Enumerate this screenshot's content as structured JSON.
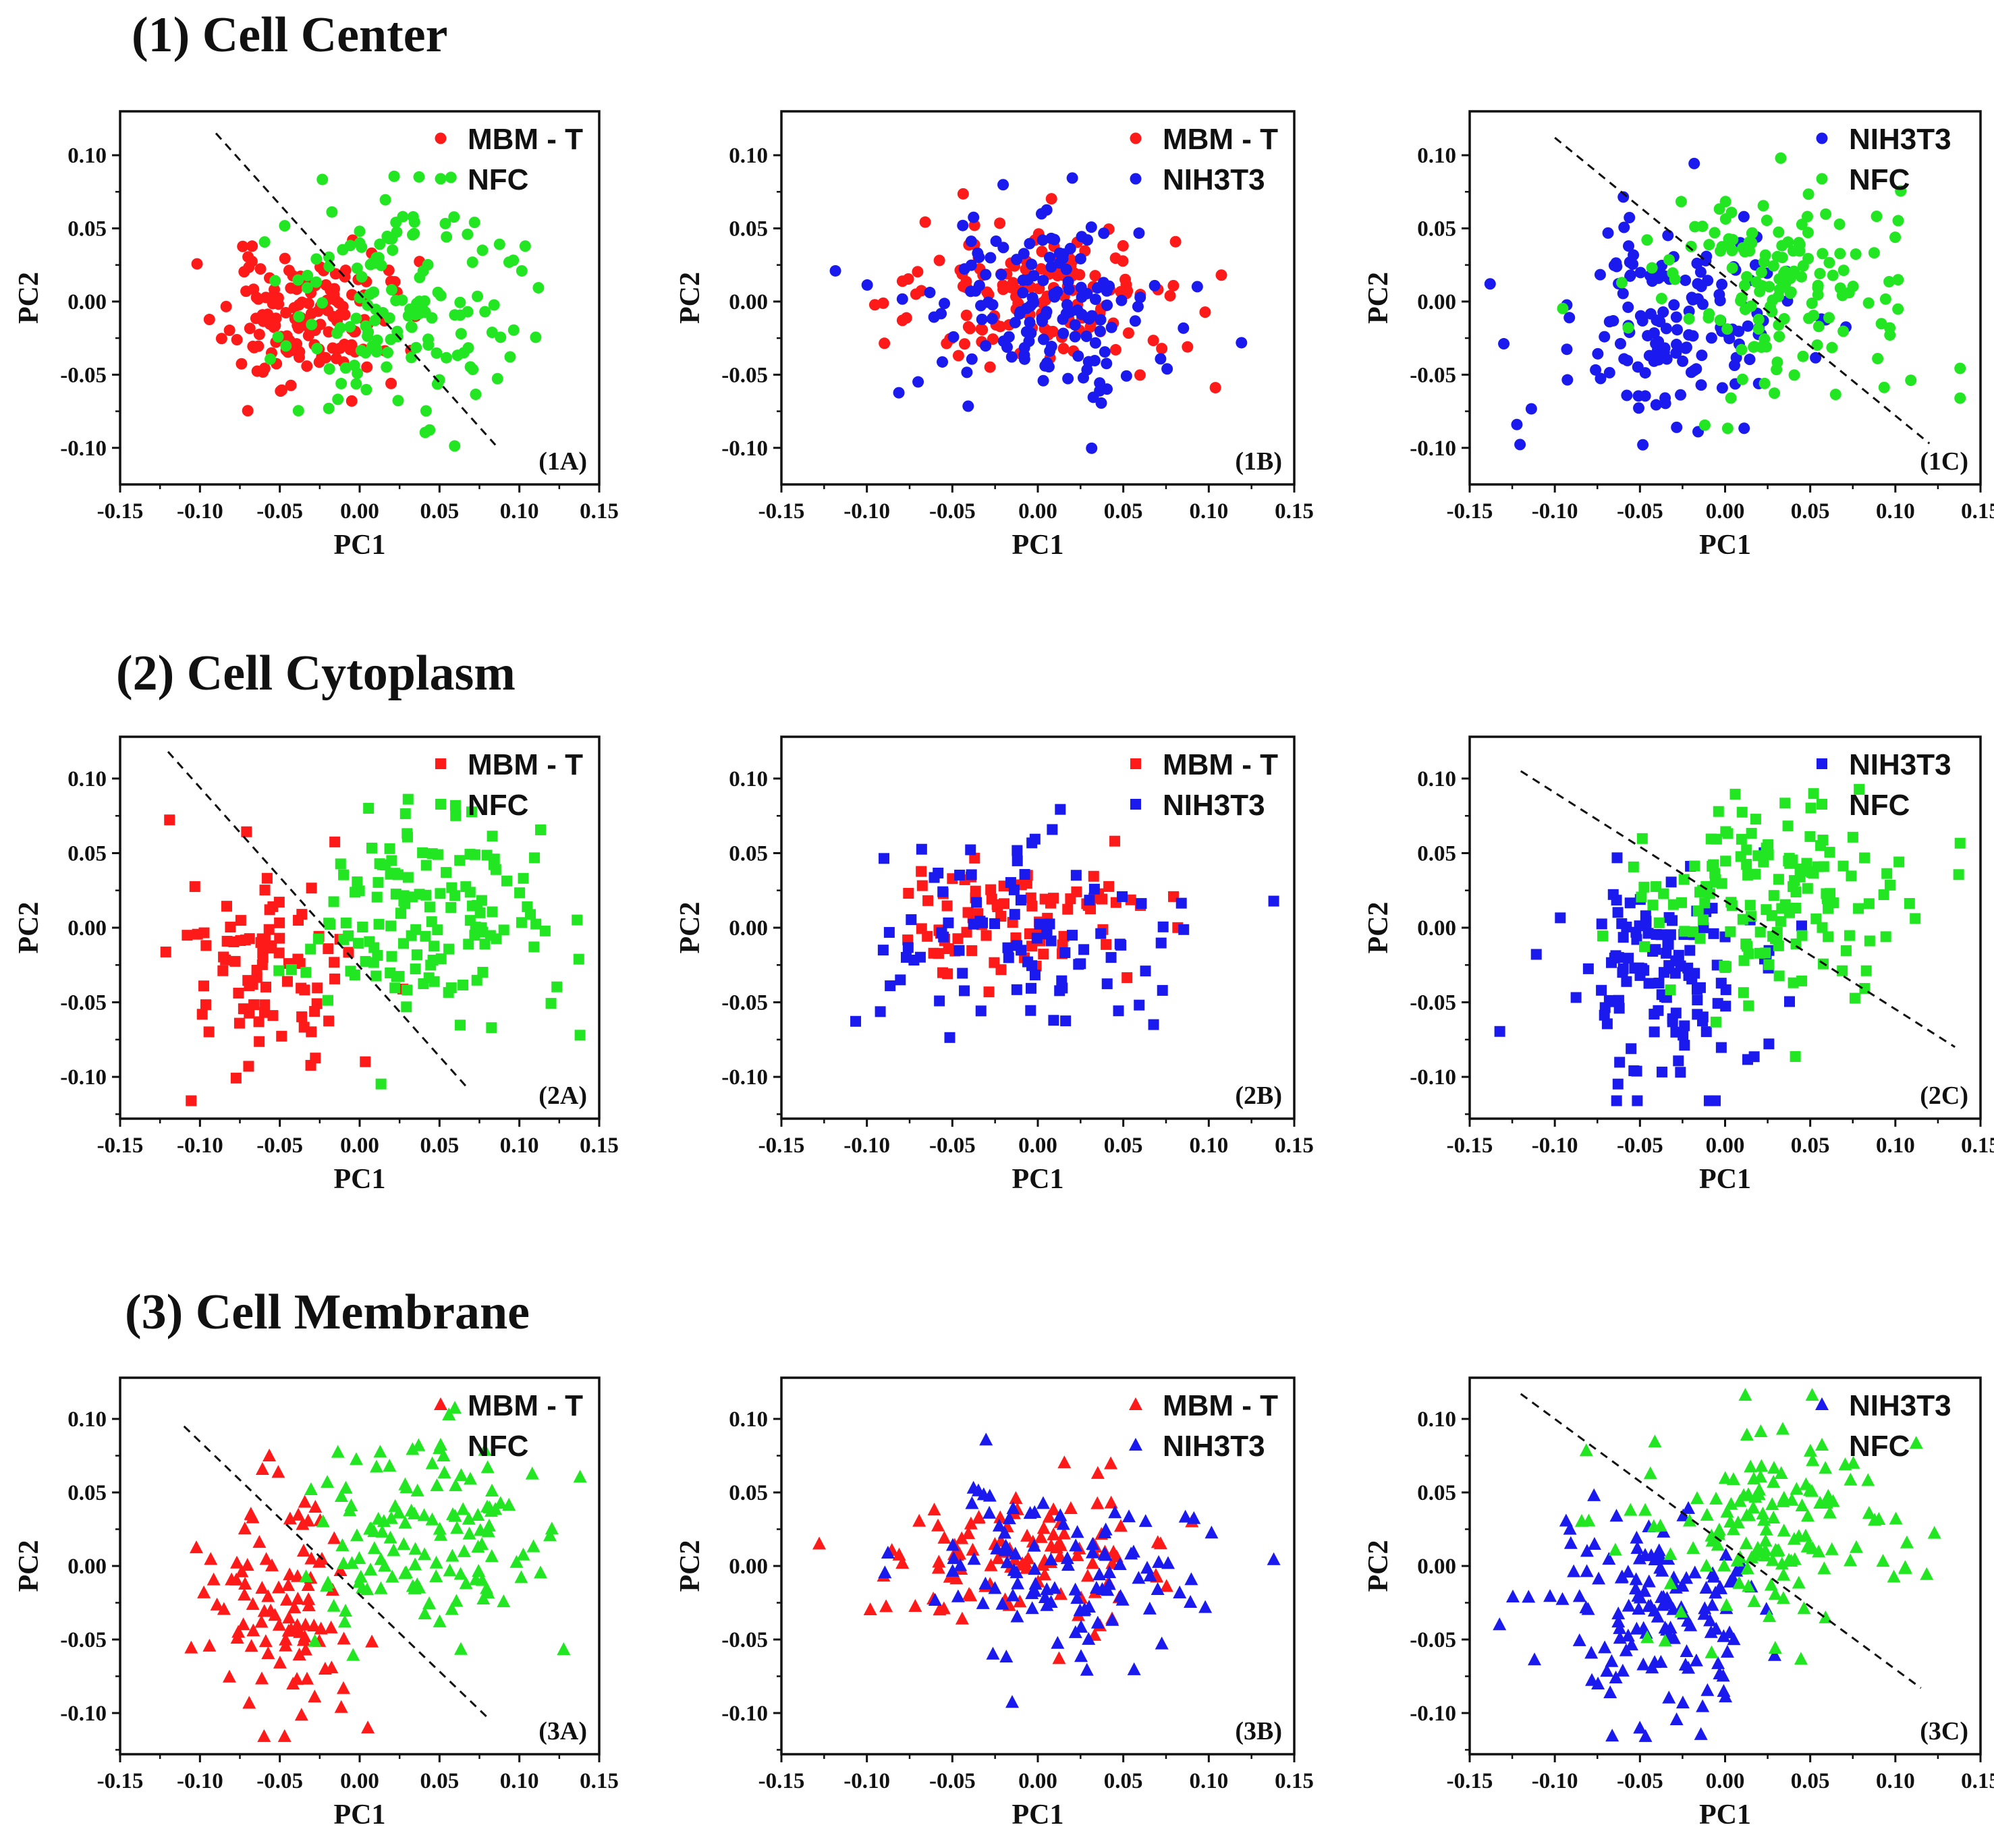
{
  "figure": {
    "sections": [
      {
        "title": "(1) Cell Center"
      },
      {
        "title": "(2) Cell Cytoplasm"
      },
      {
        "title": "(3) Cell Membrane"
      }
    ],
    "colors": {
      "MBM - T": "#ff1a1a",
      "NFC": "#22e622",
      "NIH3T3": "#1a1aee"
    }
  },
  "chart_data": [
    {
      "id": "1A",
      "type": "scatter",
      "marker": "circle",
      "tag": "(1A)",
      "xlabel": "PC1",
      "ylabel": "PC2",
      "xlim": [
        -0.15,
        0.15
      ],
      "ylim": [
        -0.125,
        0.13
      ],
      "xticks": [
        "-0.15",
        "-0.10",
        "-0.05",
        "0.00",
        "0.05",
        "0.10",
        "0.15"
      ],
      "yticks": [
        "0.10",
        "0.05",
        "0.00",
        "-0.05",
        "-0.10"
      ],
      "legend": [
        "MBM - T",
        "NFC"
      ],
      "separator": [
        [
          -0.09,
          0.115
        ],
        [
          0.085,
          -0.098
        ]
      ],
      "series": [
        {
          "name": "MBM - T",
          "center": [
            -0.035,
            -0.012
          ],
          "spread": [
            0.025,
            0.022
          ],
          "count": 150,
          "seed": 11
        },
        {
          "name": "NFC",
          "center": [
            0.025,
            0.0
          ],
          "spread": [
            0.037,
            0.036
          ],
          "count": 150,
          "seed": 12
        }
      ]
    },
    {
      "id": "1B",
      "type": "scatter",
      "marker": "circle",
      "tag": "(1B)",
      "xlabel": "PC1",
      "ylabel": "PC2",
      "xlim": [
        -0.15,
        0.15
      ],
      "ylim": [
        -0.125,
        0.13
      ],
      "xticks": [
        "-0.15",
        "-0.10",
        "-0.05",
        "0.00",
        "0.05",
        "0.10",
        "0.15"
      ],
      "yticks": [
        "0.10",
        "0.05",
        "0.00",
        "-0.05",
        "-0.10"
      ],
      "legend": [
        "MBM - T",
        "NIH3T3"
      ],
      "separator": null,
      "series": [
        {
          "name": "MBM - T",
          "center": [
            0.0,
            0.005
          ],
          "spread": [
            0.042,
            0.026
          ],
          "count": 150,
          "seed": 21
        },
        {
          "name": "NIH3T3",
          "center": [
            0.0,
            0.0
          ],
          "spread": [
            0.038,
            0.03
          ],
          "count": 150,
          "seed": 22
        }
      ]
    },
    {
      "id": "1C",
      "type": "scatter",
      "marker": "circle",
      "tag": "(1C)",
      "xlabel": "PC1",
      "ylabel": "PC2",
      "xlim": [
        -0.15,
        0.15
      ],
      "ylim": [
        -0.125,
        0.13
      ],
      "xticks": [
        "-0.15",
        "-0.10",
        "-0.05",
        "0.00",
        "0.05",
        "0.10",
        "0.15"
      ],
      "yticks": [
        "0.10",
        "0.05",
        "0.00",
        "-0.05",
        "-0.10"
      ],
      "legend": [
        "NIH3T3",
        "NFC"
      ],
      "separator": [
        [
          -0.1,
          0.112
        ],
        [
          0.12,
          -0.097
        ]
      ],
      "series": [
        {
          "name": "NIH3T3",
          "center": [
            -0.03,
            -0.015
          ],
          "spread": [
            0.035,
            0.035
          ],
          "count": 150,
          "seed": 31
        },
        {
          "name": "NFC",
          "center": [
            0.03,
            0.015
          ],
          "spread": [
            0.04,
            0.035
          ],
          "count": 150,
          "seed": 32
        }
      ]
    },
    {
      "id": "2A",
      "type": "scatter",
      "marker": "square",
      "tag": "(2A)",
      "xlabel": "PC1",
      "ylabel": "PC2",
      "xlim": [
        -0.15,
        0.15
      ],
      "ylim": [
        -0.128,
        0.128
      ],
      "xticks": [
        "-0.15",
        "-0.10",
        "-0.05",
        "0.00",
        "0.05",
        "0.10",
        "0.15"
      ],
      "yticks": [
        "0.10",
        "0.05",
        "0.00",
        "-0.05",
        "-0.10"
      ],
      "legend": [
        "MBM - T",
        "NFC"
      ],
      "separator": [
        [
          -0.12,
          0.118
        ],
        [
          0.068,
          -0.108
        ]
      ],
      "series": [
        {
          "name": "MBM - T",
          "center": [
            -0.055,
            -0.025
          ],
          "spread": [
            0.025,
            0.035
          ],
          "count": 90,
          "seed": 41
        },
        {
          "name": "NFC",
          "center": [
            0.04,
            0.01
          ],
          "spread": [
            0.04,
            0.035
          ],
          "count": 140,
          "seed": 42
        }
      ]
    },
    {
      "id": "2B",
      "type": "scatter",
      "marker": "square",
      "tag": "(2B)",
      "xlabel": "PC1",
      "ylabel": "PC2",
      "xlim": [
        -0.15,
        0.15
      ],
      "ylim": [
        -0.128,
        0.128
      ],
      "xticks": [
        "-0.15",
        "-0.10",
        "-0.05",
        "0.00",
        "0.05",
        "0.10",
        "0.15"
      ],
      "yticks": [
        "0.10",
        "0.05",
        "0.00",
        "-0.05",
        "-0.10"
      ],
      "legend": [
        "MBM - T",
        "NIH3T3"
      ],
      "separator": null,
      "series": [
        {
          "name": "MBM - T",
          "center": [
            -0.02,
            0.005
          ],
          "spread": [
            0.035,
            0.02
          ],
          "count": 90,
          "seed": 51
        },
        {
          "name": "NIH3T3",
          "center": [
            0.005,
            -0.005
          ],
          "spread": [
            0.045,
            0.035
          ],
          "count": 90,
          "seed": 52
        }
      ]
    },
    {
      "id": "2C",
      "type": "scatter",
      "marker": "square",
      "tag": "(2C)",
      "xlabel": "PC1",
      "ylabel": "PC2",
      "xlim": [
        -0.15,
        0.15
      ],
      "ylim": [
        -0.128,
        0.128
      ],
      "xticks": [
        "-0.15",
        "-0.10",
        "-0.05",
        "0.00",
        "0.05",
        "0.10",
        "0.15"
      ],
      "yticks": [
        "0.10",
        "0.05",
        "0.00",
        "-0.05",
        "-0.10"
      ],
      "legend": [
        "NIH3T3",
        "NFC"
      ],
      "separator": [
        [
          -0.12,
          0.105
        ],
        [
          0.135,
          -0.08
        ]
      ],
      "series": [
        {
          "name": "NIH3T3",
          "center": [
            -0.04,
            -0.03
          ],
          "spread": [
            0.035,
            0.035
          ],
          "count": 130,
          "seed": 61
        },
        {
          "name": "NFC",
          "center": [
            0.03,
            0.02
          ],
          "spread": [
            0.04,
            0.035
          ],
          "count": 150,
          "seed": 62
        }
      ]
    },
    {
      "id": "3A",
      "type": "scatter",
      "marker": "triangle",
      "tag": "(3A)",
      "xlabel": "PC1",
      "ylabel": "PC2",
      "xlim": [
        -0.15,
        0.15
      ],
      "ylim": [
        -0.128,
        0.128
      ],
      "xticks": [
        "-0.15",
        "-0.10",
        "-0.05",
        "0.00",
        "0.05",
        "0.10",
        "0.15"
      ],
      "yticks": [
        "0.10",
        "0.05",
        "0.00",
        "-0.05",
        "-0.10"
      ],
      "legend": [
        "MBM - T",
        "NFC"
      ],
      "separator": [
        [
          -0.11,
          0.095
        ],
        [
          0.08,
          -0.103
        ]
      ],
      "series": [
        {
          "name": "MBM - T",
          "center": [
            -0.05,
            -0.025
          ],
          "spread": [
            0.025,
            0.04
          ],
          "count": 100,
          "seed": 71
        },
        {
          "name": "NFC",
          "center": [
            0.04,
            0.02
          ],
          "spread": [
            0.04,
            0.04
          ],
          "count": 130,
          "seed": 72
        }
      ]
    },
    {
      "id": "3B",
      "type": "scatter",
      "marker": "triangle",
      "tag": "(3B)",
      "xlabel": "PC1",
      "ylabel": "PC2",
      "xlim": [
        -0.15,
        0.15
      ],
      "ylim": [
        -0.128,
        0.128
      ],
      "xticks": [
        "-0.15",
        "-0.10",
        "-0.05",
        "0.00",
        "0.05",
        "0.10",
        "0.15"
      ],
      "yticks": [
        "0.10",
        "0.05",
        "0.00",
        "-0.05",
        "-0.10"
      ],
      "legend": [
        "MBM - T",
        "NIH3T3"
      ],
      "separator": null,
      "series": [
        {
          "name": "MBM - T",
          "center": [
            -0.01,
            0.01
          ],
          "spread": [
            0.04,
            0.025
          ],
          "count": 110,
          "seed": 81
        },
        {
          "name": "NIH3T3",
          "center": [
            0.01,
            -0.005
          ],
          "spread": [
            0.045,
            0.035
          ],
          "count": 110,
          "seed": 82
        }
      ]
    },
    {
      "id": "3C",
      "type": "scatter",
      "marker": "triangle",
      "tag": "(3C)",
      "xlabel": "PC1",
      "ylabel": "PC2",
      "xlim": [
        -0.15,
        0.15
      ],
      "ylim": [
        -0.128,
        0.128
      ],
      "xticks": [
        "-0.15",
        "-0.10",
        "-0.05",
        "0.00",
        "0.05",
        "0.10",
        "0.15"
      ],
      "yticks": [
        "0.10",
        "0.05",
        "0.00",
        "-0.05",
        "-0.10"
      ],
      "legend": [
        "NIH3T3",
        "NFC"
      ],
      "separator": [
        [
          -0.12,
          0.117
        ],
        [
          0.115,
          -0.083
        ]
      ],
      "series": [
        {
          "name": "NIH3T3",
          "center": [
            -0.04,
            -0.03
          ],
          "spread": [
            0.035,
            0.035
          ],
          "count": 140,
          "seed": 91
        },
        {
          "name": "NFC",
          "center": [
            0.03,
            0.03
          ],
          "spread": [
            0.04,
            0.035
          ],
          "count": 140,
          "seed": 92
        }
      ]
    }
  ]
}
